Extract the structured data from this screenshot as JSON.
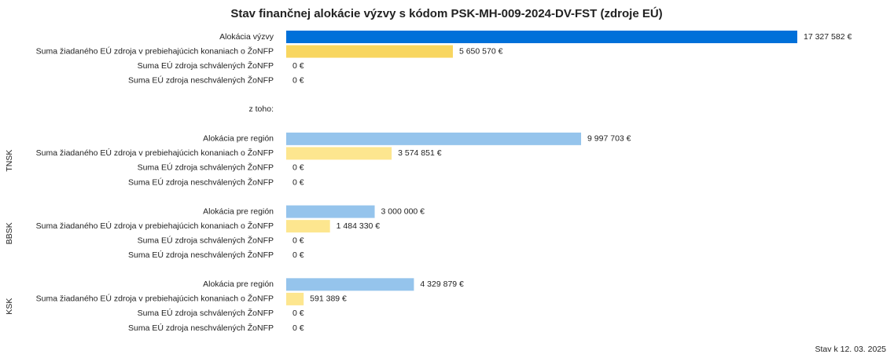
{
  "chart_data": {
    "type": "hbar",
    "title": "Stav finančnej alokácie výzvy s kódom PSK-MH-009-2024-DV-FST (zdroje EÚ)",
    "subheading": "z toho:",
    "footnote": "Stav k 12. 03. 2025",
    "xlim": [
      0,
      17327582
    ],
    "groups": [
      {
        "categories": [
          "Alokácia výzvy",
          "Suma žiadaného EÚ zdroja v prebiehajúcich konaniach o ŽoNFP",
          "Suma EÚ zdroja schválených ŽoNFP",
          "Suma EÚ zdroja neschválených ŽoNFP"
        ],
        "values": [
          17327582,
          5650570,
          0,
          0
        ],
        "value_labels": [
          "17 327 582 €",
          "5 650 570 €",
          "0 €",
          "0 €"
        ],
        "colors": [
          "#0070d9",
          "#f8d660",
          "#f8d660",
          "#f8d660"
        ]
      },
      {
        "name": "TNSK",
        "categories": [
          "Alokácia pre región",
          "Suma žiadaného EÚ zdroja v prebiehajúcich konaniach o ŽoNFP",
          "Suma EÚ zdroja schválených ŽoNFP",
          "Suma EÚ zdroja neschválených ŽoNFP"
        ],
        "values": [
          9997703,
          3574851,
          0,
          0
        ],
        "value_labels": [
          "9 997 703 €",
          "3 574 851 €",
          "0 €",
          "0 €"
        ],
        "colors": [
          "#95c4ec",
          "#fde68f",
          "#fde68f",
          "#fde68f"
        ]
      },
      {
        "name": "BBSK",
        "categories": [
          "Alokácia pre región",
          "Suma žiadaného EÚ zdroja v prebiehajúcich konaniach o ŽoNFP",
          "Suma EÚ zdroja schválených ŽoNFP",
          "Suma EÚ zdroja neschválených ŽoNFP"
        ],
        "values": [
          3000000,
          1484330,
          0,
          0
        ],
        "value_labels": [
          "3 000 000 €",
          "1 484 330 €",
          "0 €",
          "0 €"
        ],
        "colors": [
          "#95c4ec",
          "#fde68f",
          "#fde68f",
          "#fde68f"
        ]
      },
      {
        "name": "KSK",
        "categories": [
          "Alokácia pre región",
          "Suma žiadaného EÚ zdroja v prebiehajúcich konaniach o ŽoNFP",
          "Suma EÚ zdroja schválených ŽoNFP",
          "Suma EÚ zdroja neschválených ŽoNFP"
        ],
        "values": [
          4329879,
          591389,
          0,
          0
        ],
        "value_labels": [
          "4 329 879 €",
          "591 389 €",
          "0 €",
          "0 €"
        ],
        "colors": [
          "#95c4ec",
          "#fde68f",
          "#fde68f",
          "#fde68f"
        ]
      }
    ]
  }
}
